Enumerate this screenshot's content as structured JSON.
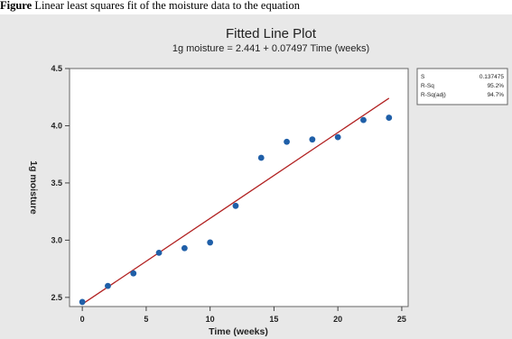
{
  "caption": {
    "figure_label": "Figure",
    "text": "Linear least squares fit of the moisture data to the equation"
  },
  "chart_data": {
    "type": "scatter",
    "title": "Fitted Line Plot",
    "subtitle": "1g moisture = 2.441 + 0.07497 Time (weeks)",
    "xlabel": "Time (weeks)",
    "ylabel": "1g moisture",
    "xlim": [
      -1,
      25.5
    ],
    "ylim": [
      2.42,
      4.5
    ],
    "x_ticks": [
      0,
      5,
      10,
      15,
      20,
      25
    ],
    "y_ticks": [
      2.5,
      3.0,
      3.5,
      4.0,
      4.5
    ],
    "x_tick_labels": [
      "0",
      "5",
      "10",
      "15",
      "20",
      "25"
    ],
    "y_tick_labels": [
      "2.5",
      "3.0",
      "3.5",
      "4.0",
      "4.5"
    ],
    "grid": false,
    "series": [
      {
        "x": [
          0,
          2,
          4,
          6,
          8,
          10,
          12,
          14,
          16,
          18,
          20,
          22,
          24
        ],
        "y": [
          2.46,
          2.6,
          2.71,
          2.89,
          2.93,
          2.98,
          3.3,
          3.72,
          3.86,
          3.88,
          3.9,
          4.05,
          4.07
        ],
        "color": "#1f5fa8"
      }
    ],
    "fit_line": {
      "intercept": 2.441,
      "slope": 0.07497,
      "x_range": [
        0,
        24
      ],
      "color": "#b22222"
    },
    "stats": [
      {
        "label": "S",
        "value": "0.137475"
      },
      {
        "label": "R-Sq",
        "value": "95.2%"
      },
      {
        "label": "R-Sq(adj)",
        "value": "94.7%"
      }
    ]
  }
}
